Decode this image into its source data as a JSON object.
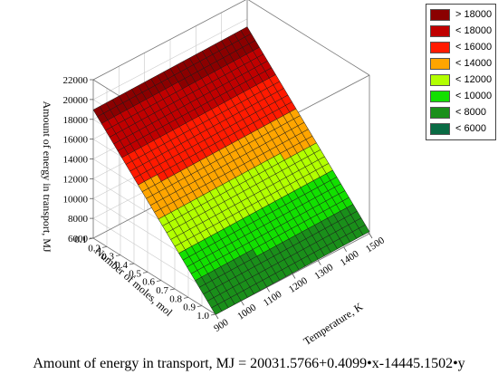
{
  "chart_data": {
    "type": "surface",
    "equation": "Amount of energy in transport, MJ = 20031.5766+0.4099•x-14445.1502•y",
    "coefficients": {
      "intercept": 20031.5766,
      "x": 0.4099,
      "y": -14445.1502
    },
    "x_axis": {
      "label": "Temperature, K",
      "range": [
        900,
        1500
      ],
      "ticks": [
        "900",
        "1000",
        "1100",
        "1200",
        "1300",
        "1400",
        "1500"
      ]
    },
    "y_axis": {
      "label": "Number of moles, mol",
      "range": [
        0.1,
        1.0
      ],
      "ticks": [
        "0.1",
        "0.2",
        "0.3",
        "0.4",
        "0.5",
        "0.6",
        "0.7",
        "0.8",
        "0.9",
        "1.0"
      ]
    },
    "z_axis": {
      "label": "Amount of energy in transport, MJ",
      "range": [
        6000,
        22000
      ],
      "ticks": [
        "6000",
        "8000",
        "10000",
        "12000",
        "14000",
        "16000",
        "18000",
        "20000",
        "22000"
      ]
    },
    "grid": true,
    "legend": {
      "placement": "top-right",
      "items": [
        {
          "label": "> 18000",
          "color": "#8b0000"
        },
        {
          "label": "< 18000",
          "color": "#c00000"
        },
        {
          "label": "< 16000",
          "color": "#ff1a00"
        },
        {
          "label": "< 14000",
          "color": "#ffa500"
        },
        {
          "label": "< 12000",
          "color": "#b2ff00"
        },
        {
          "label": "< 10000",
          "color": "#12e000"
        },
        {
          "label": "< 8000",
          "color": "#1a8f1a"
        },
        {
          "label": "< 6000",
          "color": "#0a6b44"
        }
      ]
    }
  }
}
